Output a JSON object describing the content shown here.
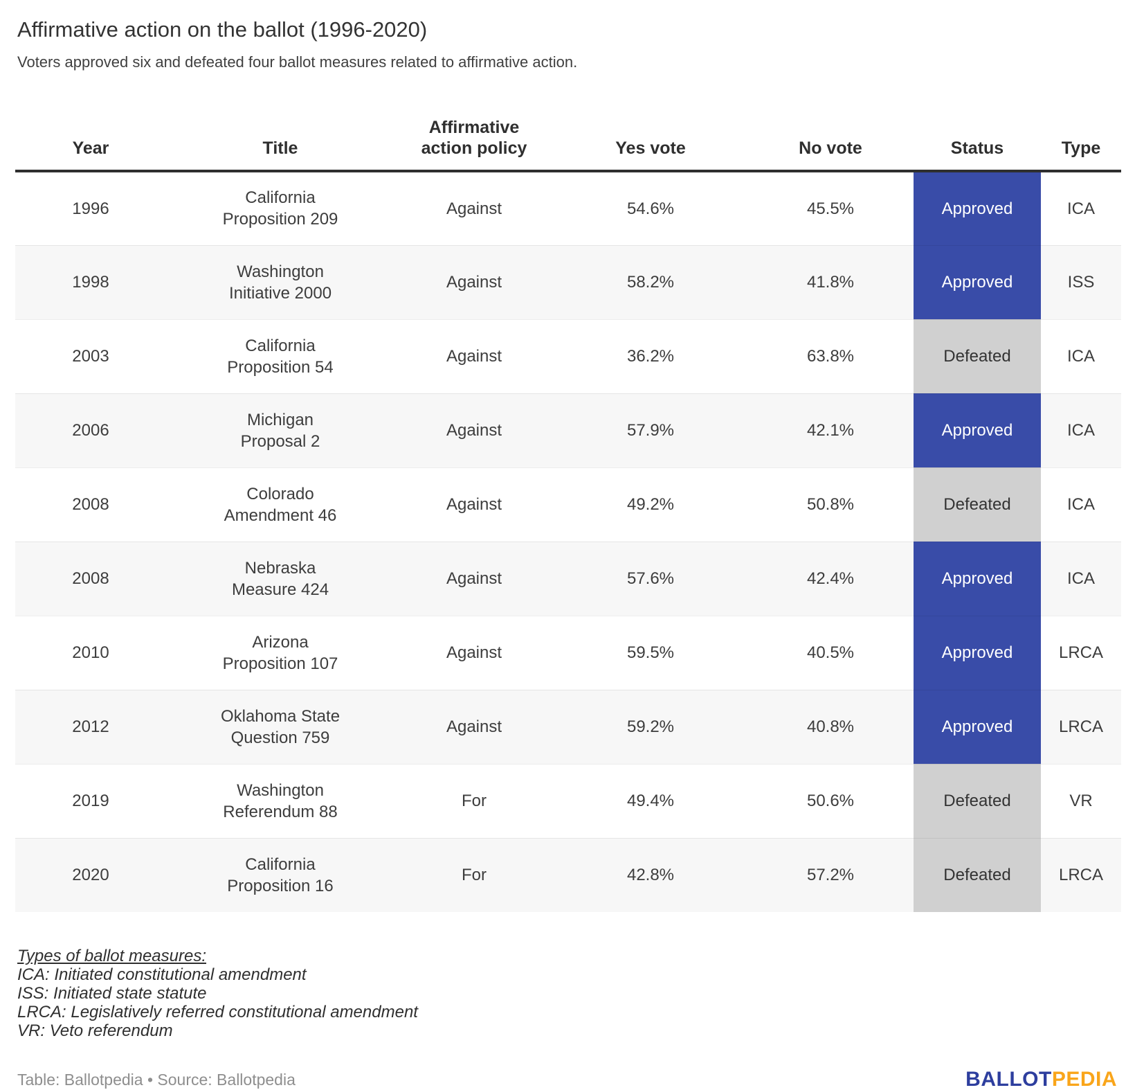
{
  "header": {
    "title": "Affirmative action on the ballot (1996-2020)",
    "subtitle": "Voters approved six and defeated four ballot measures related to affirmative action."
  },
  "table": {
    "columns": [
      "Year",
      "Title",
      "Affirmative\naction policy",
      "Yes vote",
      "No vote",
      "Status",
      "Type"
    ],
    "rows": [
      {
        "year": "1996",
        "title": "California\nProposition 209",
        "policy": "Against",
        "yes": "54.6%",
        "no": "45.5%",
        "status": "Approved",
        "type": "ICA"
      },
      {
        "year": "1998",
        "title": "Washington\nInitiative 2000",
        "policy": "Against",
        "yes": "58.2%",
        "no": "41.8%",
        "status": "Approved",
        "type": "ISS"
      },
      {
        "year": "2003",
        "title": "California\nProposition 54",
        "policy": "Against",
        "yes": "36.2%",
        "no": "63.8%",
        "status": "Defeated",
        "type": "ICA"
      },
      {
        "year": "2006",
        "title": "Michigan\nProposal 2",
        "policy": "Against",
        "yes": "57.9%",
        "no": "42.1%",
        "status": "Approved",
        "type": "ICA"
      },
      {
        "year": "2008",
        "title": "Colorado\nAmendment 46",
        "policy": "Against",
        "yes": "49.2%",
        "no": "50.8%",
        "status": "Defeated",
        "type": "ICA"
      },
      {
        "year": "2008",
        "title": "Nebraska\nMeasure 424",
        "policy": "Against",
        "yes": "57.6%",
        "no": "42.4%",
        "status": "Approved",
        "type": "ICA"
      },
      {
        "year": "2010",
        "title": "Arizona\nProposition 107",
        "policy": "Against",
        "yes": "59.5%",
        "no": "40.5%",
        "status": "Approved",
        "type": "LRCA"
      },
      {
        "year": "2012",
        "title": "Oklahoma State\nQuestion 759",
        "policy": "Against",
        "yes": "59.2%",
        "no": "40.8%",
        "status": "Approved",
        "type": "LRCA"
      },
      {
        "year": "2019",
        "title": "Washington\nReferendum 88",
        "policy": "For",
        "yes": "49.4%",
        "no": "50.6%",
        "status": "Defeated",
        "type": "VR"
      },
      {
        "year": "2020",
        "title": "California\nProposition 16",
        "policy": "For",
        "yes": "42.8%",
        "no": "57.2%",
        "status": "Defeated",
        "type": "LRCA"
      }
    ]
  },
  "status_colors": {
    "Approved": {
      "bg": "#394ca8",
      "text": "#ffffff"
    },
    "Defeated": {
      "bg": "#d0d0d0",
      "text": "#333333"
    }
  },
  "legend": {
    "heading": "Types of ballot measures:",
    "items": [
      "ICA: Initiated constitutional amendment",
      "ISS: Initiated state statute",
      "LRCA: Legislatively referred constitutional amendment",
      "VR: Veto referendum"
    ]
  },
  "footer": {
    "attribution": "Table: Ballotpedia • Source: Ballotpedia",
    "logo_ballot": "BALLOT",
    "logo_pedia": "PEDIA",
    "logo_blue": "#2d3e9e",
    "logo_orange": "#f9a51a"
  }
}
